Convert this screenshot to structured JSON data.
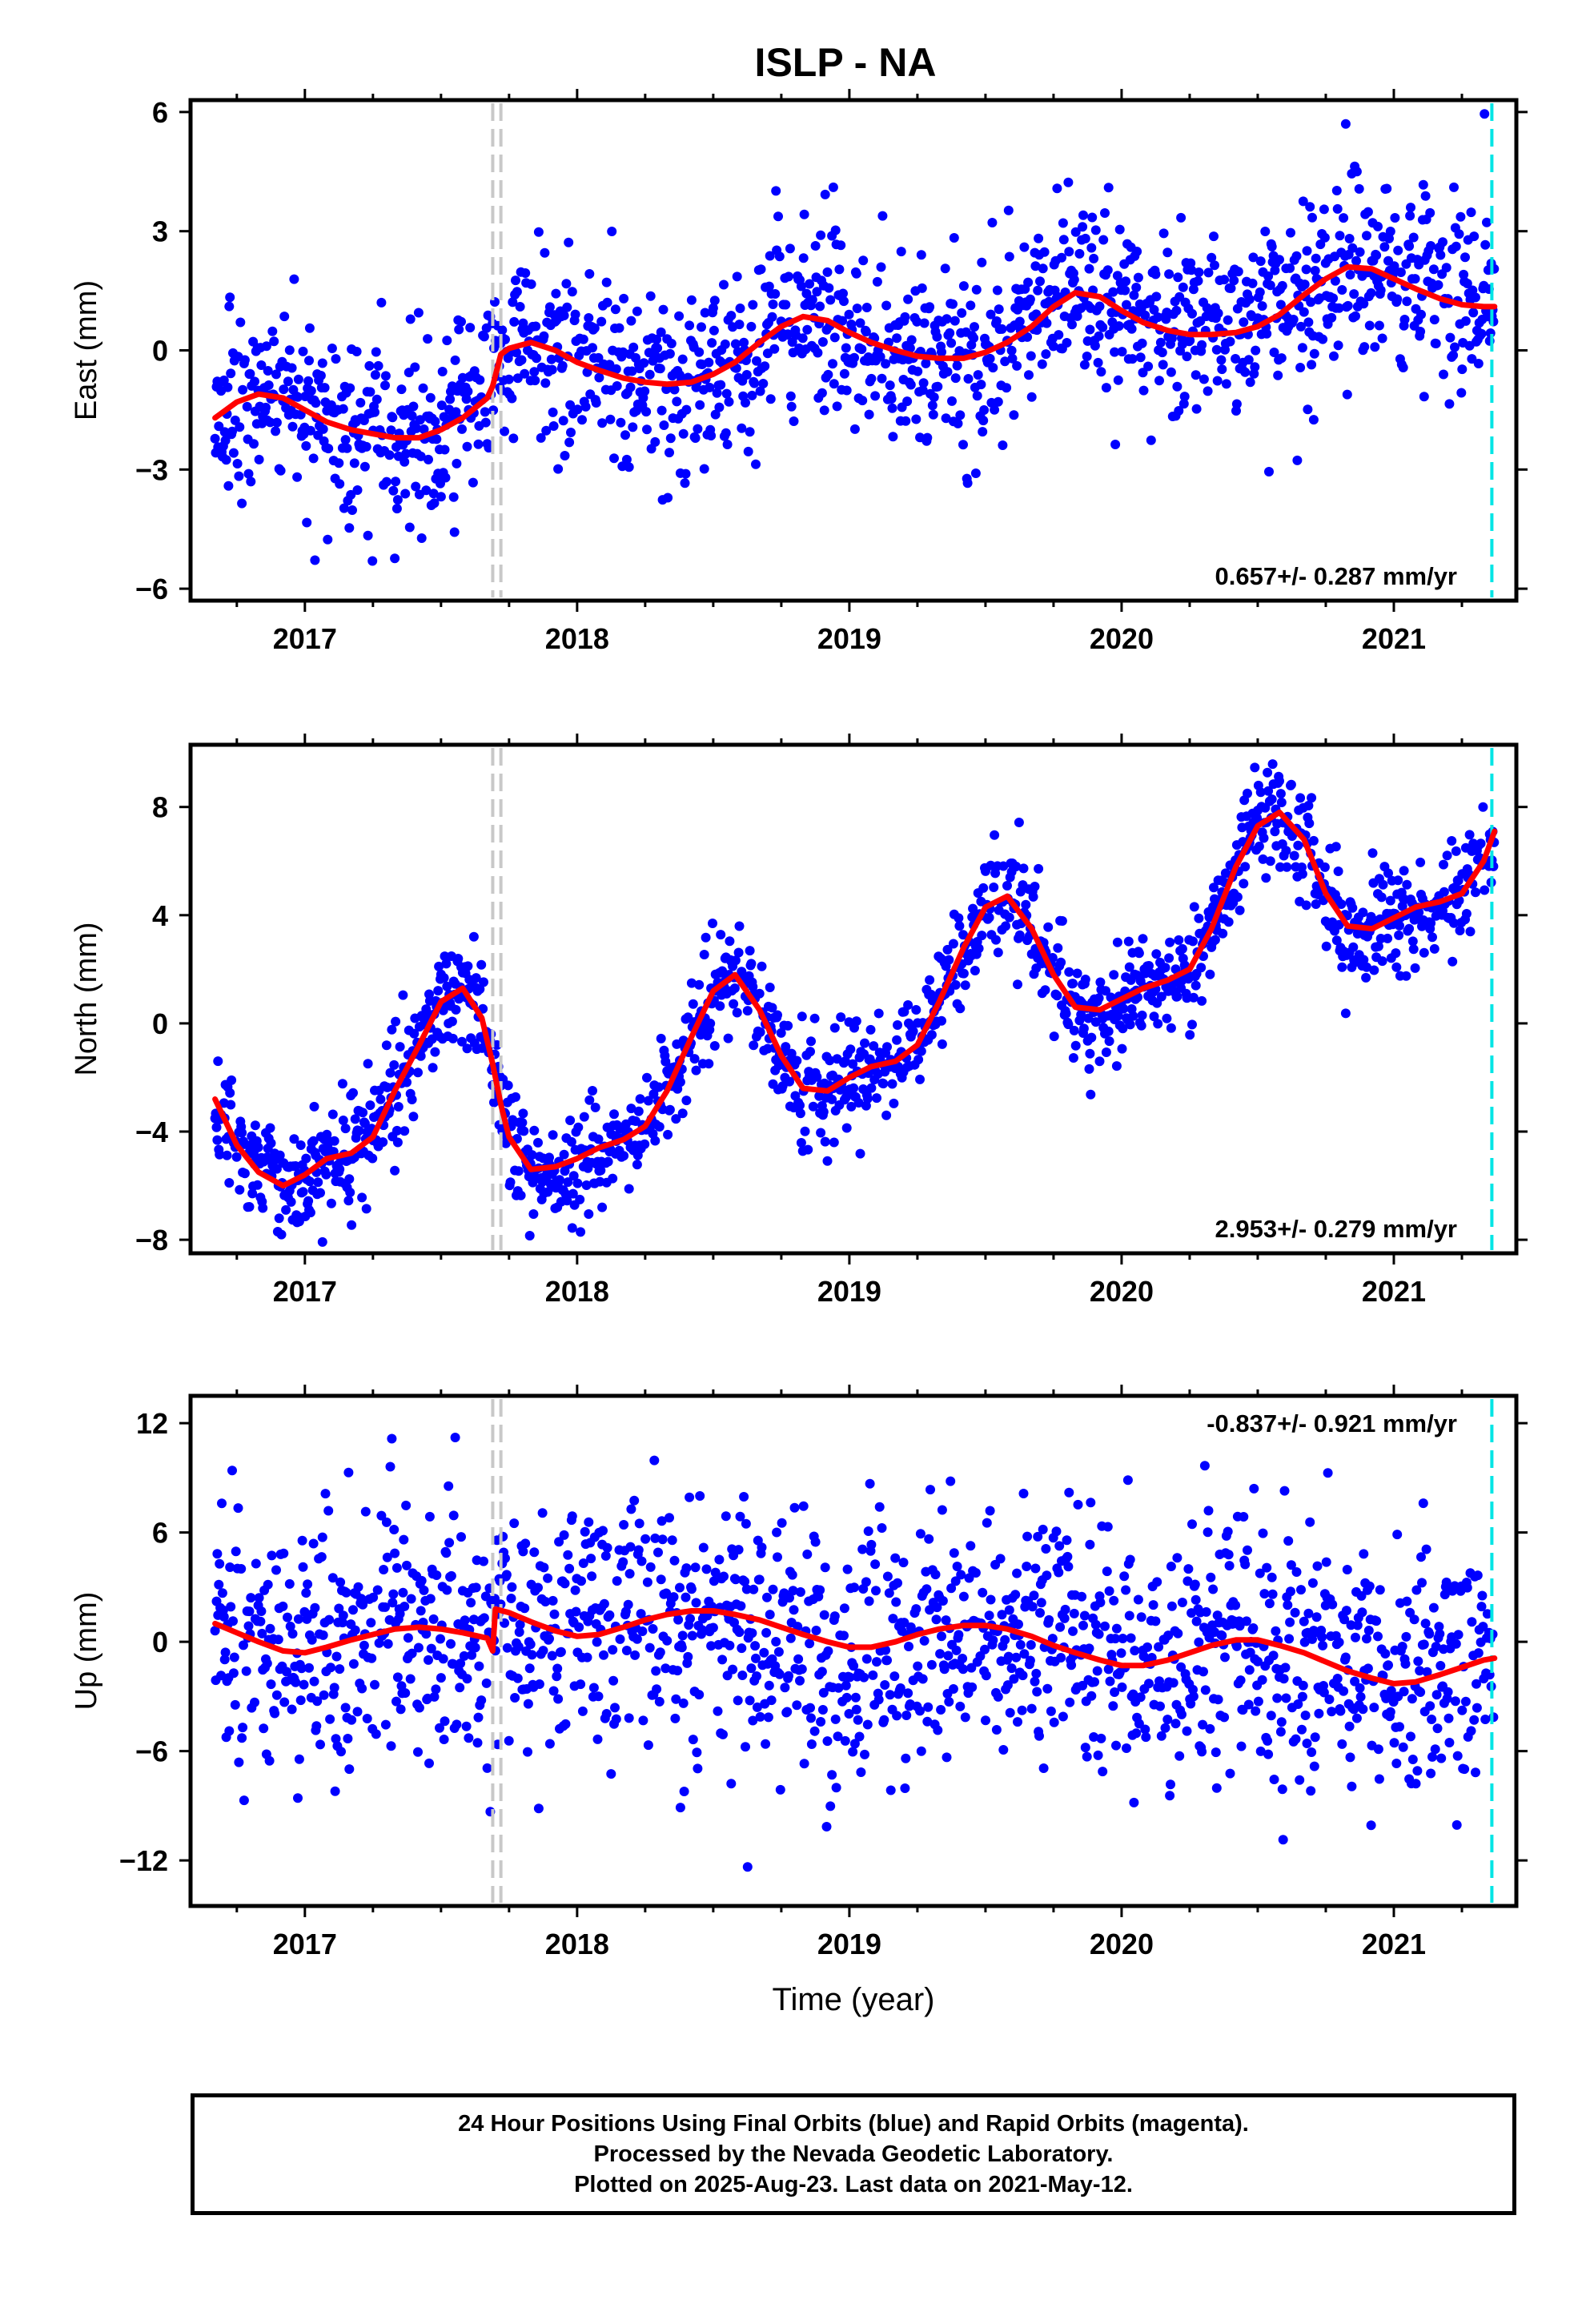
{
  "title": "ISLP - NA",
  "chart_data": [
    {
      "type": "scatter",
      "ylabel": "East (mm)",
      "xlabel": "",
      "xlim": [
        2016.58,
        2021.45
      ],
      "ylim": [
        -6.3,
        6.3
      ],
      "xticks": [
        2017,
        2018,
        2019,
        2020,
        2021
      ],
      "yticks": [
        -6,
        -3,
        0,
        3,
        6
      ],
      "ytick_labels": [
        "−6",
        "−3",
        "0",
        "3",
        "6"
      ],
      "rate_label": "0.657+/- 0.287 mm/yr",
      "rate_position": "bottom-right",
      "series": [
        {
          "values": [
            [
              2016.67,
              -1.7
            ],
            [
              2016.75,
              -1.3
            ],
            [
              2016.83,
              -1.1
            ],
            [
              2016.92,
              -1.2
            ],
            [
              2017.0,
              -1.5
            ],
            [
              2017.08,
              -1.8
            ],
            [
              2017.17,
              -2.0
            ],
            [
              2017.25,
              -2.1
            ],
            [
              2017.33,
              -2.2
            ],
            [
              2017.42,
              -2.2
            ],
            [
              2017.5,
              -2.0
            ],
            [
              2017.58,
              -1.7
            ],
            [
              2017.67,
              -1.2
            ],
            [
              2017.69,
              -0.9
            ],
            [
              2017.72,
              -0.1
            ],
            [
              2017.75,
              0.05
            ],
            [
              2017.83,
              0.2
            ],
            [
              2017.92,
              0.0
            ],
            [
              2018.0,
              -0.3
            ],
            [
              2018.08,
              -0.5
            ],
            [
              2018.17,
              -0.7
            ],
            [
              2018.25,
              -0.8
            ],
            [
              2018.33,
              -0.85
            ],
            [
              2018.42,
              -0.8
            ],
            [
              2018.5,
              -0.6
            ],
            [
              2018.58,
              -0.3
            ],
            [
              2018.67,
              0.2
            ],
            [
              2018.75,
              0.6
            ],
            [
              2018.83,
              0.85
            ],
            [
              2018.92,
              0.75
            ],
            [
              2019.0,
              0.45
            ],
            [
              2019.08,
              0.2
            ],
            [
              2019.17,
              0.0
            ],
            [
              2019.25,
              -0.15
            ],
            [
              2019.33,
              -0.2
            ],
            [
              2019.42,
              -0.2
            ],
            [
              2019.5,
              -0.05
            ],
            [
              2019.58,
              0.2
            ],
            [
              2019.67,
              0.6
            ],
            [
              2019.75,
              1.1
            ],
            [
              2019.83,
              1.45
            ],
            [
              2019.92,
              1.35
            ],
            [
              2020.0,
              1.0
            ],
            [
              2020.08,
              0.7
            ],
            [
              2020.17,
              0.5
            ],
            [
              2020.25,
              0.4
            ],
            [
              2020.33,
              0.4
            ],
            [
              2020.42,
              0.45
            ],
            [
              2020.5,
              0.6
            ],
            [
              2020.58,
              0.9
            ],
            [
              2020.67,
              1.4
            ],
            [
              2020.75,
              1.8
            ],
            [
              2020.83,
              2.1
            ],
            [
              2020.92,
              2.05
            ],
            [
              2021.0,
              1.8
            ],
            [
              2021.08,
              1.55
            ],
            [
              2021.17,
              1.3
            ],
            [
              2021.25,
              1.15
            ],
            [
              2021.33,
              1.1
            ],
            [
              2021.37,
              1.1
            ]
          ]
        }
      ]
    },
    {
      "type": "scatter",
      "ylabel": "North (mm)",
      "xlabel": "",
      "xlim": [
        2016.58,
        2021.45
      ],
      "ylim": [
        -8.5,
        10.3
      ],
      "xticks": [
        2017,
        2018,
        2019,
        2020,
        2021
      ],
      "yticks": [
        -8,
        -4,
        0,
        4,
        8
      ],
      "ytick_labels": [
        "−8",
        "−4",
        "0",
        "4",
        "8"
      ],
      "rate_label": "2.953+/- 0.279 mm/yr",
      "rate_position": "bottom-right",
      "series": [
        {
          "values": [
            [
              2016.67,
              -2.8
            ],
            [
              2016.75,
              -4.5
            ],
            [
              2016.83,
              -5.5
            ],
            [
              2016.92,
              -6.0
            ],
            [
              2017.0,
              -5.6
            ],
            [
              2017.08,
              -5.0
            ],
            [
              2017.17,
              -4.8
            ],
            [
              2017.25,
              -4.2
            ],
            [
              2017.33,
              -2.5
            ],
            [
              2017.42,
              -0.8
            ],
            [
              2017.5,
              0.8
            ],
            [
              2017.58,
              1.3
            ],
            [
              2017.65,
              0.2
            ],
            [
              2017.69,
              -1.5
            ],
            [
              2017.72,
              -3.0
            ],
            [
              2017.75,
              -4.2
            ],
            [
              2017.83,
              -5.4
            ],
            [
              2017.92,
              -5.3
            ],
            [
              2018.0,
              -5.0
            ],
            [
              2018.08,
              -4.6
            ],
            [
              2018.17,
              -4.3
            ],
            [
              2018.25,
              -3.8
            ],
            [
              2018.33,
              -2.5
            ],
            [
              2018.42,
              -0.5
            ],
            [
              2018.5,
              1.2
            ],
            [
              2018.58,
              1.8
            ],
            [
              2018.67,
              0.5
            ],
            [
              2018.75,
              -1.2
            ],
            [
              2018.83,
              -2.4
            ],
            [
              2018.92,
              -2.5
            ],
            [
              2019.0,
              -2.0
            ],
            [
              2019.08,
              -1.6
            ],
            [
              2019.17,
              -1.4
            ],
            [
              2019.25,
              -0.8
            ],
            [
              2019.33,
              0.8
            ],
            [
              2019.42,
              2.8
            ],
            [
              2019.5,
              4.3
            ],
            [
              2019.58,
              4.7
            ],
            [
              2019.67,
              3.5
            ],
            [
              2019.75,
              1.8
            ],
            [
              2019.83,
              0.6
            ],
            [
              2019.92,
              0.5
            ],
            [
              2020.0,
              0.9
            ],
            [
              2020.08,
              1.3
            ],
            [
              2020.17,
              1.6
            ],
            [
              2020.25,
              2.0
            ],
            [
              2020.33,
              3.5
            ],
            [
              2020.42,
              5.8
            ],
            [
              2020.5,
              7.3
            ],
            [
              2020.58,
              7.8
            ],
            [
              2020.67,
              6.8
            ],
            [
              2020.75,
              4.8
            ],
            [
              2020.83,
              3.6
            ],
            [
              2020.92,
              3.5
            ],
            [
              2021.0,
              3.9
            ],
            [
              2021.08,
              4.3
            ],
            [
              2021.17,
              4.5
            ],
            [
              2021.25,
              4.8
            ],
            [
              2021.33,
              6.0
            ],
            [
              2021.37,
              7.1
            ]
          ]
        }
      ]
    },
    {
      "type": "scatter",
      "ylabel": "Up (mm)",
      "xlabel": "Time (year)",
      "xlim": [
        2016.58,
        2021.45
      ],
      "ylim": [
        -14.5,
        13.5
      ],
      "xticks": [
        2017,
        2018,
        2019,
        2020,
        2021
      ],
      "yticks": [
        -12,
        -6,
        0,
        6,
        12
      ],
      "ytick_labels": [
        "−12",
        "−6",
        "0",
        "6",
        "12"
      ],
      "rate_label": "-0.837+/- 0.921 mm/yr",
      "rate_position": "top-right",
      "series": [
        {
          "values": [
            [
              2016.67,
              1.0
            ],
            [
              2016.75,
              0.5
            ],
            [
              2016.83,
              0.0
            ],
            [
              2016.92,
              -0.5
            ],
            [
              2017.0,
              -0.6
            ],
            [
              2017.08,
              -0.3
            ],
            [
              2017.17,
              0.1
            ],
            [
              2017.25,
              0.4
            ],
            [
              2017.33,
              0.7
            ],
            [
              2017.42,
              0.8
            ],
            [
              2017.5,
              0.7
            ],
            [
              2017.58,
              0.5
            ],
            [
              2017.67,
              0.2
            ],
            [
              2017.69,
              -0.5
            ],
            [
              2017.7,
              1.8
            ],
            [
              2017.75,
              1.6
            ],
            [
              2017.83,
              1.1
            ],
            [
              2017.92,
              0.6
            ],
            [
              2018.0,
              0.3
            ],
            [
              2018.08,
              0.4
            ],
            [
              2018.17,
              0.8
            ],
            [
              2018.25,
              1.2
            ],
            [
              2018.33,
              1.5
            ],
            [
              2018.42,
              1.7
            ],
            [
              2018.5,
              1.7
            ],
            [
              2018.58,
              1.5
            ],
            [
              2018.67,
              1.2
            ],
            [
              2018.75,
              0.8
            ],
            [
              2018.83,
              0.4
            ],
            [
              2018.92,
              0.0
            ],
            [
              2019.0,
              -0.3
            ],
            [
              2019.08,
              -0.3
            ],
            [
              2019.17,
              0.0
            ],
            [
              2019.25,
              0.4
            ],
            [
              2019.33,
              0.7
            ],
            [
              2019.42,
              0.9
            ],
            [
              2019.5,
              0.9
            ],
            [
              2019.58,
              0.7
            ],
            [
              2019.67,
              0.3
            ],
            [
              2019.75,
              -0.2
            ],
            [
              2019.83,
              -0.6
            ],
            [
              2019.92,
              -1.0
            ],
            [
              2020.0,
              -1.3
            ],
            [
              2020.08,
              -1.3
            ],
            [
              2020.17,
              -1.0
            ],
            [
              2020.25,
              -0.6
            ],
            [
              2020.33,
              -0.2
            ],
            [
              2020.42,
              0.1
            ],
            [
              2020.5,
              0.1
            ],
            [
              2020.58,
              -0.2
            ],
            [
              2020.67,
              -0.6
            ],
            [
              2020.75,
              -1.1
            ],
            [
              2020.83,
              -1.6
            ],
            [
              2020.92,
              -2.0
            ],
            [
              2021.0,
              -2.3
            ],
            [
              2021.08,
              -2.2
            ],
            [
              2021.17,
              -1.8
            ],
            [
              2021.25,
              -1.4
            ],
            [
              2021.33,
              -1.0
            ],
            [
              2021.37,
              -0.9
            ]
          ]
        }
      ]
    }
  ],
  "scatter_spread": [
    1.2,
    1.0,
    3.6
  ],
  "vertical_markers": {
    "equipment_change_years": [
      2017.69,
      2017.72
    ],
    "last_data_year": 2021.36
  },
  "colors": {
    "points": "#0000ff",
    "trend": "#ff0000",
    "equipment_line": "#c8c8c8",
    "last_data_line": "#00e5e5",
    "axis": "#000000"
  },
  "footer": {
    "line1": "24 Hour Positions Using Final Orbits (blue) and Rapid Orbits (magenta).",
    "line2": "Processed by the Nevada Geodetic Laboratory.",
    "line3": "Plotted on 2025-Aug-23. Last data on 2021-May-12."
  }
}
